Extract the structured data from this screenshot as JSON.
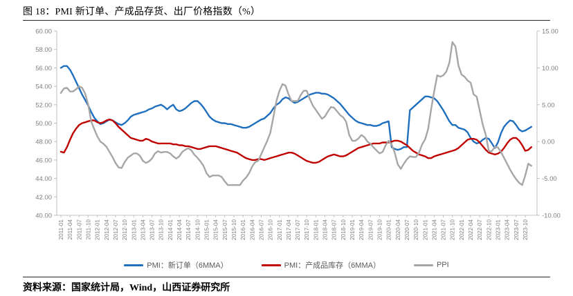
{
  "title": "图 18：PMI 新订单、产成品存货、出厂价格指数（%）",
  "source_note": "资料来源：国家统计局，Wind，山西证券研究所",
  "colors": {
    "new_orders": "#1F6FBF",
    "inventory": "#C00000",
    "ppi": "#A6A6A6",
    "axis_line": "#BFBFBF",
    "tick_text": "#7F7F7F",
    "legend_text": "#595959",
    "rule": "#262626"
  },
  "legend": [
    {
      "label": "PMI：新订单（6MMA）",
      "color": "#1F6FBF"
    },
    {
      "label": "PMI：产成品库存（6MMA）",
      "color": "#C00000"
    },
    {
      "label": "PPI",
      "color": "#A6A6A6"
    }
  ],
  "chart_data": {
    "type": "line",
    "title": "图 18：PMI 新订单、产成品存货、出厂价格指数（%）",
    "x_monthly_start": "2011-01",
    "x_monthly_end": "2023-12",
    "grid": false,
    "legend_position": "bottom",
    "left_axis": {
      "min": 40,
      "max": 60,
      "ticks": [
        "60.00",
        "58.00",
        "56.00",
        "54.00",
        "52.00",
        "50.00",
        "48.00",
        "46.00",
        "44.00",
        "42.00",
        "40.00"
      ]
    },
    "right_axis": {
      "min": -10,
      "max": 15,
      "ticks": [
        "15.00",
        "10.00",
        "5.00",
        "0.00",
        "-5.00",
        "-10.00"
      ]
    },
    "x_tick_labels": [
      "2011-01",
      "2011-04",
      "2011-07",
      "2011-10",
      "2012-01",
      "2012-04",
      "2012-07",
      "2012-10",
      "2013-01",
      "2013-04",
      "2013-07",
      "2013-10",
      "2014-01",
      "2014-04",
      "2014-07",
      "2014-10",
      "2015-01",
      "2015-04",
      "2015-07",
      "2015-10",
      "2016-01",
      "2016-04",
      "2016-07",
      "2016-10",
      "2017-01",
      "2017-04",
      "2017-07",
      "2017-10",
      "2018-01",
      "2018-04",
      "2018-07",
      "2018-10",
      "2019-01",
      "2019-04",
      "2019-07",
      "2019-10",
      "2020-01",
      "2020-04",
      "2020-07",
      "2020-10",
      "2021-01",
      "2021-04",
      "2021-07",
      "2021-10",
      "2022-01",
      "2022-04",
      "2022-07",
      "2022-10",
      "2023-01",
      "2023-04",
      "2023-07",
      "2023-10"
    ],
    "series": [
      {
        "name": "PMI：新订单（6MMA）",
        "axis": "left",
        "color": "#1F6FBF",
        "values": [
          56.0,
          56.2,
          56.2,
          55.8,
          55.2,
          54.5,
          53.8,
          53.1,
          52.5,
          51.9,
          51.2,
          50.6,
          50.2,
          49.9,
          50.0,
          50.2,
          50.4,
          50.3,
          50.1,
          49.9,
          49.8,
          50.0,
          50.3,
          50.7,
          50.9,
          51.0,
          51.1,
          51.2,
          51.3,
          51.5,
          51.6,
          51.8,
          51.9,
          52.0,
          51.8,
          51.5,
          51.8,
          52.0,
          51.5,
          51.3,
          51.4,
          51.6,
          51.9,
          52.2,
          52.4,
          52.4,
          52.1,
          51.7,
          51.2,
          50.7,
          50.4,
          50.2,
          50.1,
          50.0,
          50.0,
          49.9,
          49.9,
          49.8,
          49.7,
          49.6,
          49.5,
          49.5,
          49.6,
          49.8,
          50.0,
          50.2,
          50.4,
          50.5,
          50.8,
          51.1,
          51.6,
          52.0,
          52.2,
          52.6,
          52.8,
          52.7,
          52.4,
          52.2,
          52.3,
          52.5,
          52.7,
          52.9,
          53.1,
          53.2,
          53.3,
          53.3,
          53.2,
          53.2,
          53.1,
          52.9,
          52.7,
          52.4,
          52.1,
          51.7,
          51.3,
          50.9,
          50.6,
          50.3,
          50.1,
          50.0,
          49.9,
          49.8,
          49.8,
          49.7,
          49.7,
          49.8,
          50.0,
          50.1,
          50.2,
          47.4,
          47.2,
          47.1,
          47.2,
          47.4,
          47.4,
          51.4,
          51.7,
          52.0,
          52.3,
          52.6,
          52.9,
          52.9,
          52.8,
          52.7,
          52.4,
          51.9,
          51.4,
          50.8,
          50.2,
          49.8,
          49.8,
          49.5,
          49.4,
          49.3,
          49.0,
          48.4,
          48.0,
          47.8,
          47.9,
          48.2,
          48.4,
          48.3,
          47.8,
          47.3,
          47.9,
          48.9,
          49.6,
          50.0,
          50.3,
          50.2,
          49.8,
          49.3,
          49.1,
          49.2,
          49.4,
          49.6
        ]
      },
      {
        "name": "PMI：产成品库存（6MMA）",
        "axis": "left",
        "color": "#C00000",
        "values": [
          46.9,
          46.8,
          47.4,
          48.2,
          48.9,
          49.4,
          49.8,
          50.0,
          50.1,
          50.2,
          50.3,
          50.3,
          50.1,
          50.0,
          50.1,
          50.3,
          50.4,
          50.3,
          50.0,
          49.6,
          49.3,
          49.0,
          48.7,
          48.4,
          48.3,
          48.2,
          48.1,
          48.1,
          48.3,
          48.2,
          48.0,
          47.9,
          47.8,
          47.8,
          47.8,
          47.8,
          47.8,
          47.7,
          47.7,
          47.6,
          47.6,
          47.5,
          47.5,
          47.4,
          47.3,
          47.2,
          47.2,
          47.3,
          47.4,
          47.5,
          47.5,
          47.5,
          47.4,
          47.3,
          47.2,
          47.1,
          47.0,
          46.9,
          46.8,
          46.6,
          46.4,
          46.2,
          46.1,
          46.0,
          46.0,
          46.1,
          46.1,
          46.0,
          46.1,
          46.2,
          46.3,
          46.4,
          46.5,
          46.6,
          46.7,
          46.8,
          46.8,
          46.7,
          46.5,
          46.3,
          46.1,
          45.9,
          45.8,
          45.7,
          45.7,
          45.8,
          46.0,
          46.2,
          46.4,
          46.5,
          46.6,
          46.5,
          46.4,
          46.4,
          46.5,
          46.7,
          46.9,
          47.1,
          47.3,
          47.4,
          47.5,
          47.6,
          47.7,
          47.8,
          47.8,
          47.8,
          47.9,
          47.9,
          47.9,
          48.0,
          48.1,
          48.1,
          48.0,
          47.8,
          47.6,
          47.3,
          47.0,
          46.8,
          46.6,
          46.5,
          46.4,
          46.2,
          46.2,
          46.4,
          46.5,
          46.6,
          46.7,
          46.8,
          46.9,
          47.0,
          47.1,
          47.3,
          47.6,
          47.9,
          48.2,
          48.3,
          48.3,
          48.2,
          47.9,
          47.5,
          47.1,
          46.8,
          46.7,
          46.6,
          46.7,
          46.9,
          47.3,
          47.8,
          48.2,
          48.4,
          48.4,
          48.1,
          47.6,
          47.0,
          47.1,
          47.4
        ]
      },
      {
        "name": "PPI",
        "axis": "right",
        "color": "#A6A6A6",
        "values": [
          6.6,
          7.2,
          7.3,
          6.8,
          6.8,
          7.1,
          7.5,
          7.3,
          6.5,
          5.0,
          2.7,
          1.7,
          0.7,
          0.0,
          -0.3,
          -0.7,
          -1.4,
          -2.1,
          -2.9,
          -3.5,
          -3.6,
          -2.8,
          -2.2,
          -1.9,
          -1.6,
          -1.6,
          -1.9,
          -2.6,
          -2.9,
          -2.7,
          -2.3,
          -1.6,
          -1.3,
          -1.5,
          -1.4,
          -1.4,
          -1.6,
          -2.0,
          -2.3,
          -2.0,
          -1.4,
          -1.1,
          -0.9,
          -1.2,
          -1.8,
          -2.2,
          -2.7,
          -3.3,
          -4.3,
          -4.8,
          -4.6,
          -4.6,
          -4.6,
          -4.8,
          -5.4,
          -5.9,
          -5.9,
          -5.9,
          -5.9,
          -5.9,
          -5.3,
          -4.9,
          -4.3,
          -3.4,
          -2.8,
          -2.6,
          -1.7,
          -0.8,
          0.1,
          1.2,
          3.3,
          5.5,
          6.9,
          7.8,
          7.6,
          6.4,
          5.5,
          5.5,
          5.5,
          6.3,
          6.9,
          6.9,
          5.8,
          4.9,
          4.3,
          3.7,
          3.1,
          3.4,
          4.1,
          4.7,
          4.6,
          4.1,
          3.6,
          3.3,
          2.7,
          0.9,
          0.1,
          0.1,
          0.4,
          0.9,
          0.6,
          0.0,
          -0.3,
          -0.8,
          -1.2,
          -1.6,
          -1.4,
          -0.5,
          0.1,
          -0.4,
          -1.5,
          -3.1,
          -3.7,
          -3.0,
          -2.4,
          -2.0,
          -2.1,
          -2.1,
          -1.5,
          -0.4,
          0.3,
          1.7,
          4.4,
          6.8,
          9.0,
          8.8,
          9.0,
          9.5,
          10.7,
          13.5,
          12.9,
          10.3,
          9.1,
          8.8,
          8.3,
          8.0,
          6.4,
          6.1,
          4.2,
          2.3,
          0.9,
          -1.3,
          -1.3,
          -0.7,
          -0.8,
          -1.4,
          -2.2,
          -3.0,
          -3.8,
          -4.5,
          -5.1,
          -5.6,
          -5.9,
          -4.6,
          -3.0,
          -3.3
        ]
      }
    ]
  }
}
